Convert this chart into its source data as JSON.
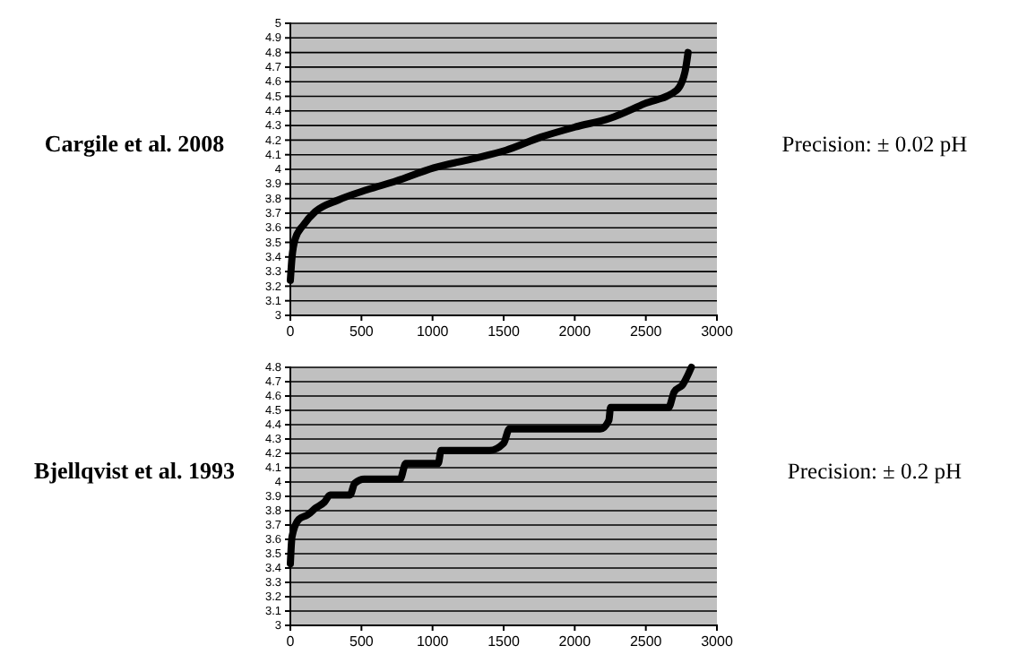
{
  "chart_data": [
    {
      "type": "line",
      "title": "Cargile et al. 2008",
      "annotations": [
        "Precision: ± 0.02 pH"
      ],
      "xlim": [
        0,
        3000
      ],
      "xticks": [
        0,
        500,
        1000,
        1500,
        2000,
        2500,
        3000
      ],
      "ylim": [
        3,
        5
      ],
      "yticks": [
        3,
        3.1,
        3.2,
        3.3,
        3.4,
        3.5,
        3.6,
        3.7,
        3.8,
        3.9,
        4,
        4.1,
        4.2,
        4.3,
        4.4,
        4.5,
        4.6,
        4.7,
        4.8,
        4.9,
        5
      ],
      "grid": "y",
      "series": [
        {
          "color": "#000000",
          "x": [
            0,
            12,
            33,
            93,
            175,
            337,
            540,
            744,
            1008,
            1272,
            1516,
            1760,
            2004,
            2248,
            2492,
            2715,
            2776,
            2797
          ],
          "values": [
            3.24,
            3.4,
            3.52,
            3.62,
            3.71,
            3.79,
            3.86,
            3.92,
            4.01,
            4.07,
            4.13,
            4.22,
            4.29,
            4.35,
            4.45,
            4.54,
            4.67,
            4.8
          ]
        }
      ]
    },
    {
      "type": "line",
      "title": "Bjellqvist et al. 1993",
      "annotations": [
        "Precision: ± 0.2 pH"
      ],
      "xlim": [
        0,
        3000
      ],
      "xticks": [
        0,
        500,
        1000,
        1500,
        2000,
        2500,
        3000
      ],
      "ylim": [
        3,
        4.8
      ],
      "yticks": [
        3,
        3.1,
        3.2,
        3.3,
        3.4,
        3.5,
        3.6,
        3.7,
        3.8,
        3.9,
        4,
        4.1,
        4.2,
        4.3,
        4.4,
        4.5,
        4.6,
        4.7,
        4.8
      ],
      "grid": "y",
      "series": [
        {
          "color": "#000000",
          "x": [
            0,
            12,
            60,
            120,
            180,
            240,
            280,
            420,
            452,
            520,
            772,
            812,
            1040,
            1060,
            1400,
            1500,
            1540,
            2180,
            2240,
            2252,
            2660,
            2700,
            2760,
            2820
          ],
          "values": [
            3.43,
            3.62,
            3.74,
            3.77,
            3.82,
            3.86,
            3.91,
            3.91,
            3.99,
            4.02,
            4.02,
            4.13,
            4.13,
            4.22,
            4.22,
            4.27,
            4.37,
            4.37,
            4.43,
            4.52,
            4.52,
            4.63,
            4.68,
            4.8
          ]
        }
      ]
    }
  ]
}
